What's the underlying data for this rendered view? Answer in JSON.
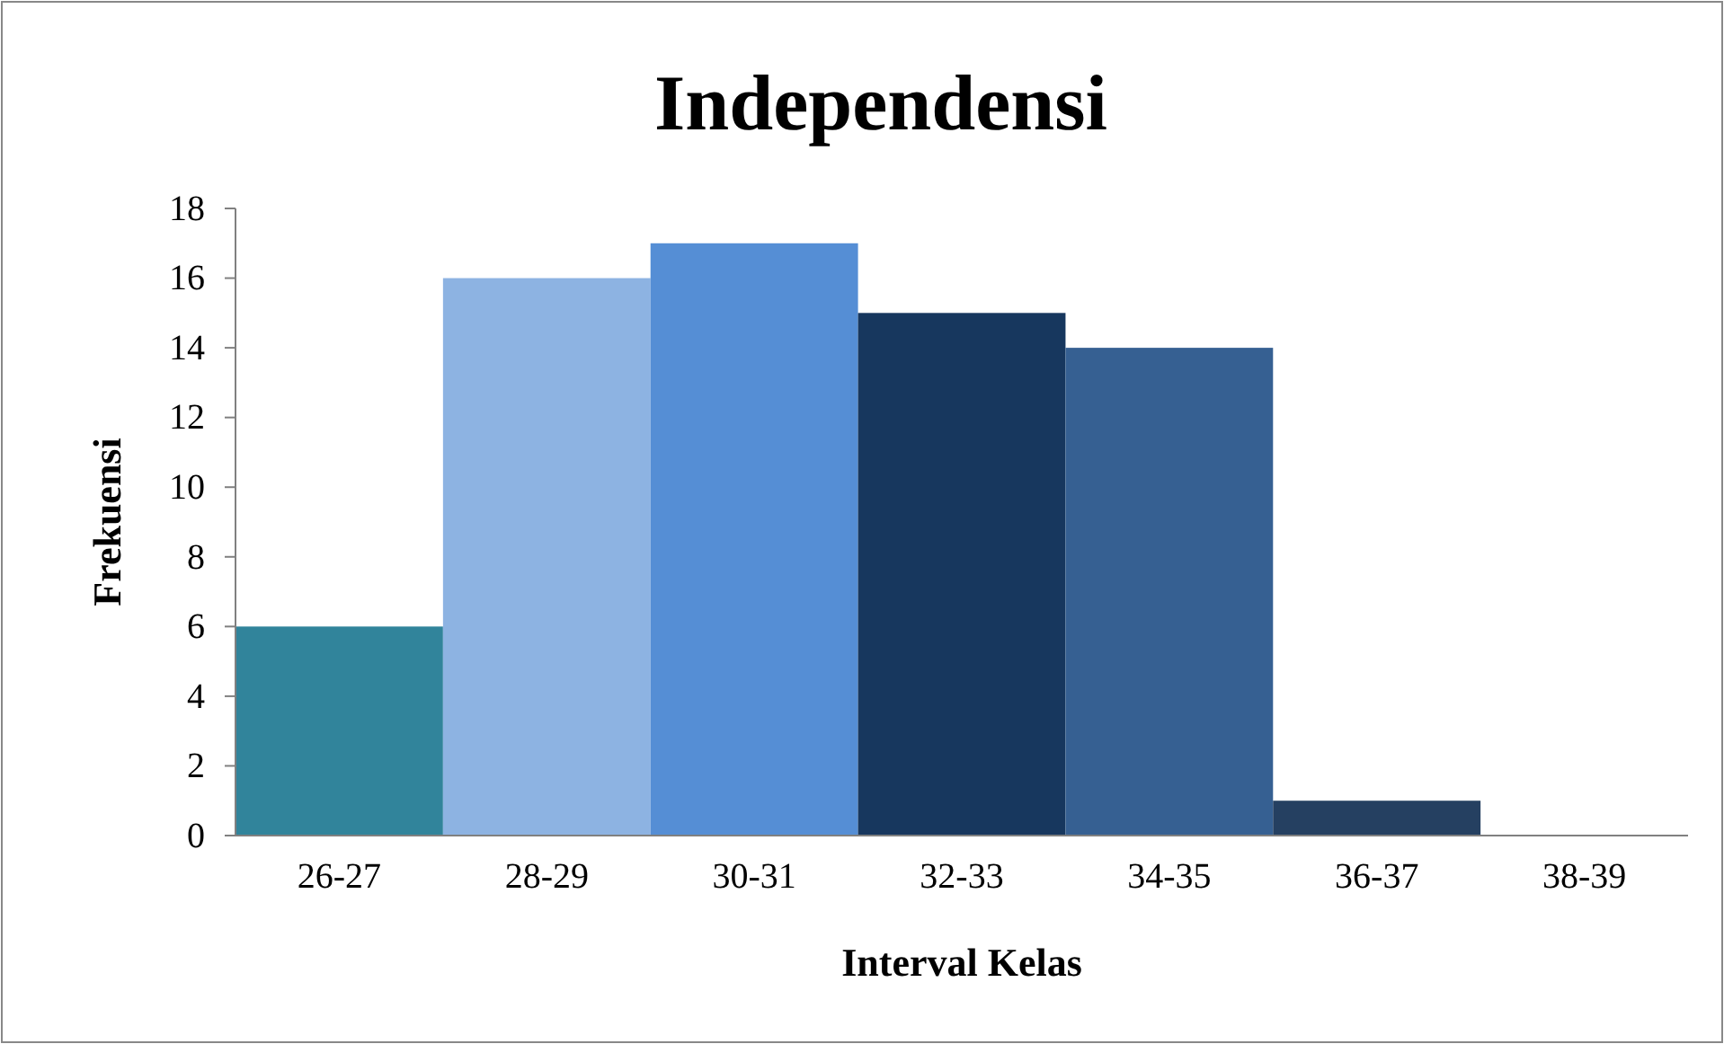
{
  "chart_data": {
    "type": "bar",
    "title": "Independensi",
    "xlabel": "Interval Kelas",
    "ylabel": "Frekuensi",
    "categories": [
      "26-27",
      "28-29",
      "30-31",
      "32-33",
      "34-35",
      "36-37",
      "38-39"
    ],
    "values": [
      6,
      16,
      17,
      15,
      14,
      1,
      0
    ],
    "colors": [
      "#31849b",
      "#8db3e2",
      "#558ed5",
      "#17375e",
      "#366092",
      "#254061",
      "#1f3a5f"
    ],
    "ylim": [
      0,
      18
    ],
    "yticks": [
      0,
      2,
      4,
      6,
      8,
      10,
      12,
      14,
      16,
      18
    ],
    "grid": false
  }
}
